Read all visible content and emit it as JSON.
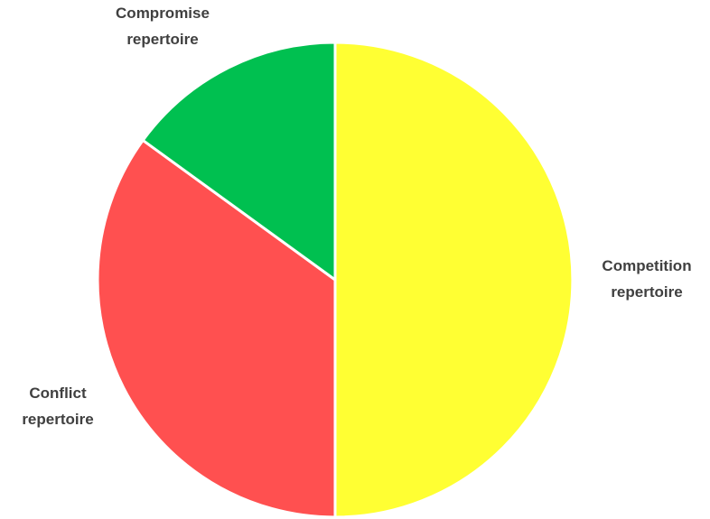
{
  "chart_data": {
    "type": "pie",
    "start_angle_deg": 0,
    "direction": "clockwise",
    "slices": [
      {
        "label_lines": [
          "Competition",
          "repertoire"
        ],
        "value": 50,
        "color": "#ffff33"
      },
      {
        "label_lines": [
          "Conflict",
          "repertoire"
        ],
        "value": 35,
        "color": "#ff5050"
      },
      {
        "label_lines": [
          "Compromise",
          "repertoire"
        ],
        "value": 15,
        "color": "#00c050"
      }
    ]
  }
}
